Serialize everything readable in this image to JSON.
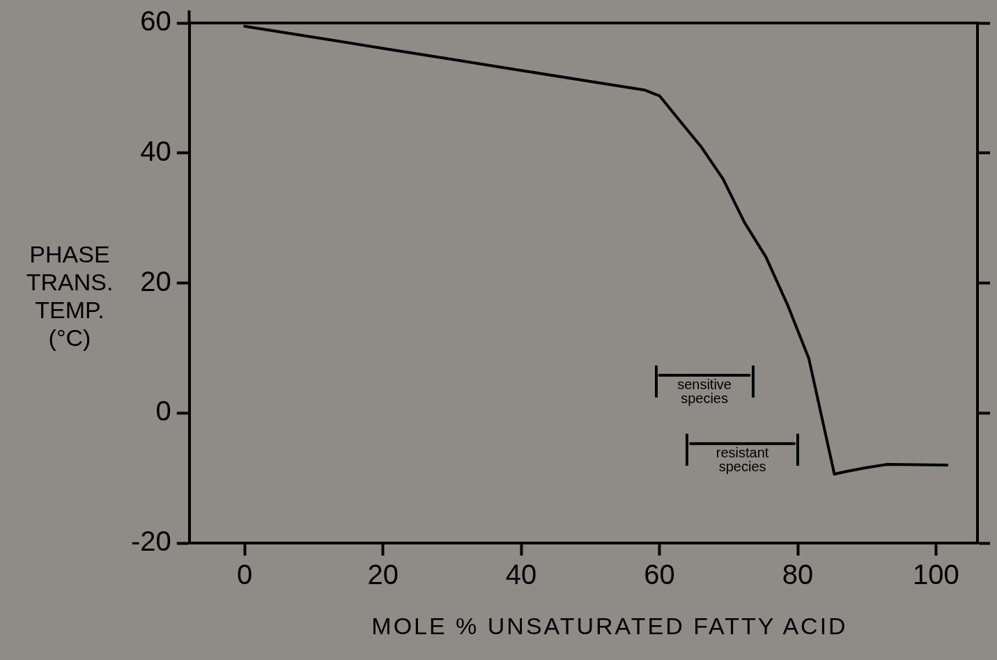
{
  "chart_data": {
    "type": "line",
    "xlabel": "MOLE % UNSATURATED FATTY ACID",
    "ylabel": "PHASE TRANS. TEMP. (°C)",
    "xlim": [
      -8,
      106
    ],
    "ylim": [
      -20,
      60
    ],
    "xticks": [
      0,
      20,
      40,
      60,
      80,
      100
    ],
    "yticks": [
      -20,
      0,
      20,
      40,
      60
    ],
    "grid": false,
    "legend": false,
    "marker": "none",
    "line_style": "solid",
    "series": [
      {
        "color": "#000000",
        "x": [
          0,
          10,
          20,
          30,
          40,
          50,
          57.8,
          60,
          62.9,
          66,
          69.2,
          72.3,
          75.4,
          78.5,
          81.6,
          85.3,
          87,
          89.9,
          93,
          101.6
        ],
        "values": [
          59.5,
          57.8,
          56.1,
          54.4,
          52.7,
          51,
          49.7,
          48.8,
          45,
          41,
          36,
          29.3,
          24,
          16.7,
          8.4,
          -9.4,
          -9,
          -8.4,
          -7.9,
          -8
        ]
      },
      {
        "color": "#000000",
        "x": [
          60,
          73
        ],
        "values": [
          5.8,
          5.8
        ]
      },
      {
        "color": "#000000",
        "x": [
          64.5,
          79.5
        ],
        "values": [
          -4.7,
          -4.7
        ]
      }
    ],
    "annotations": [
      {
        "text": "sensitive species",
        "x": 66.5,
        "y": 5.8
      },
      {
        "text": "resistant species",
        "x": 72,
        "y": -4.7
      }
    ]
  }
}
